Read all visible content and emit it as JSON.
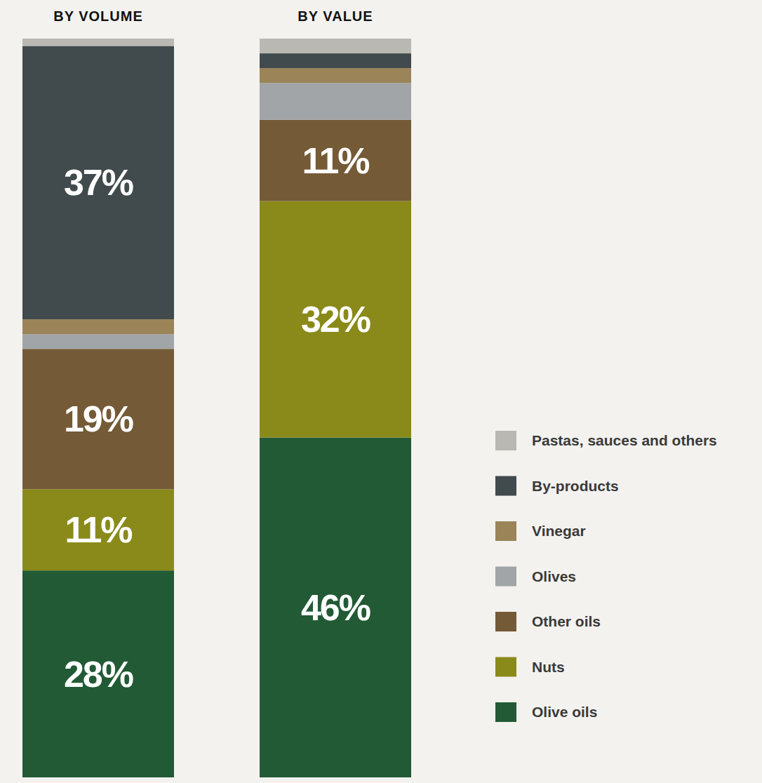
{
  "chart_data": {
    "type": "bar",
    "stacked": true,
    "data_labels": true,
    "tick_labels": false,
    "legend": "right",
    "categories": [
      "BY VOLUME",
      "BY VALUE"
    ],
    "ylim": [
      0,
      100
    ],
    "series": [
      {
        "name": "Olive oils",
        "color": "#225a36",
        "values": [
          28,
          46
        ],
        "value_labels": [
          "28%",
          "46%"
        ]
      },
      {
        "name": "Nuts",
        "color": "#8a8a1a",
        "values": [
          11,
          32
        ],
        "value_labels": [
          "11%",
          "32%"
        ]
      },
      {
        "name": "Other oils",
        "color": "#745a36",
        "values": [
          19,
          11
        ],
        "value_labels": [
          "19%",
          "11%"
        ]
      },
      {
        "name": "Olives",
        "color": "#a1a5a7",
        "values": [
          2,
          5
        ],
        "value_labels": [
          null,
          null
        ]
      },
      {
        "name": "Vinegar",
        "color": "#9a8458",
        "values": [
          2,
          2
        ],
        "value_labels": [
          null,
          null
        ]
      },
      {
        "name": "By-products",
        "color": "#414a4c",
        "values": [
          37,
          2
        ],
        "value_labels": [
          "37%",
          null
        ]
      },
      {
        "name": "Pastas, sauces and others",
        "color": "#b9b8b3",
        "values": [
          1,
          2
        ],
        "value_labels": [
          null,
          null
        ]
      }
    ]
  }
}
